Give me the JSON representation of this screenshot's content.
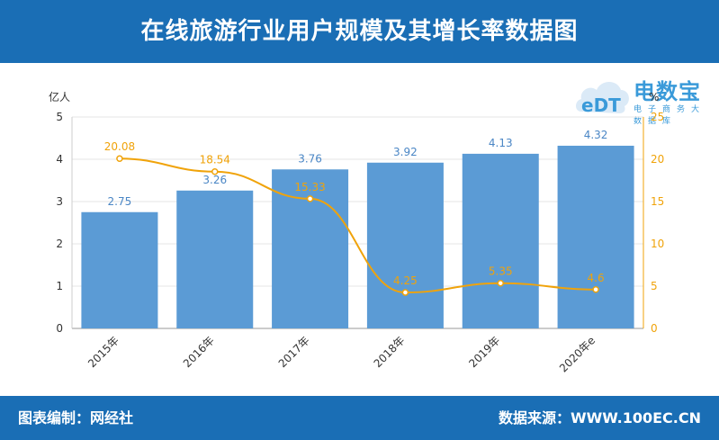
{
  "header": {
    "title": "在线旅游行业用户规模及其增长率数据图"
  },
  "footer": {
    "left": "图表编制：网经社",
    "right": "数据来源：WWW.100EC.CN"
  },
  "logo": {
    "brand": "电数宝",
    "sub": "电子商务大数据库",
    "mark": "eDT"
  },
  "colors": {
    "header_bg": "#1a6eb5",
    "bar": "#5b9bd5",
    "bar_label": "#4a86c5",
    "line": "#f0a30a",
    "axis_right": "#f0a30a"
  },
  "chart_data": {
    "type": "bar",
    "categories": [
      "2015年",
      "2016年",
      "2017年",
      "2018年",
      "2019年",
      "2020年e"
    ],
    "series": [
      {
        "name": "",
        "type": "bar",
        "axis": "left",
        "values": [
          2.75,
          3.26,
          3.76,
          3.92,
          4.13,
          4.32
        ]
      },
      {
        "name": "",
        "type": "line",
        "axis": "right",
        "values": [
          20.08,
          18.54,
          15.33,
          4.25,
          5.35,
          4.6
        ]
      }
    ],
    "y_left": {
      "label": "亿人",
      "range": [
        0,
        5
      ],
      "ticks": [
        "0",
        "1",
        "2",
        "3",
        "4",
        "5"
      ]
    },
    "y_right": {
      "label": "%",
      "range": [
        0,
        25
      ],
      "ticks": [
        "0",
        "5",
        "10",
        "15",
        "20",
        "25"
      ]
    },
    "bar_labels": [
      "2.75",
      "3.26",
      "3.76",
      "3.92",
      "4.13",
      "4.32"
    ],
    "line_labels": [
      "20.08",
      "18.54",
      "15.33",
      "4.25",
      "5.35",
      "4.6"
    ],
    "grid": true,
    "legend": "none"
  }
}
